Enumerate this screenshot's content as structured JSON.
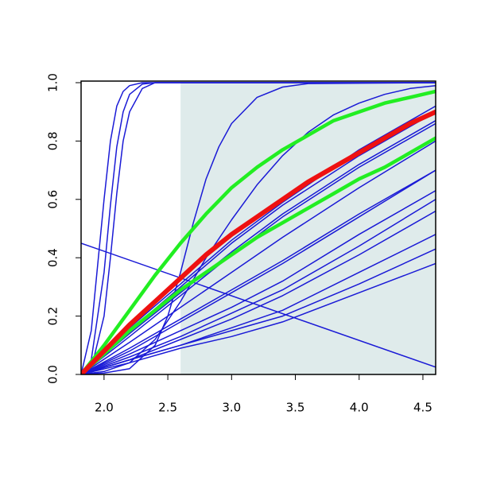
{
  "chart_data": {
    "type": "line",
    "xlim": [
      1.82,
      4.6
    ],
    "ylim": [
      0,
      1
    ],
    "xticks": [
      {
        "value": 2,
        "label": "2.0"
      },
      2.5,
      {
        "value": 3,
        "label": "3.0"
      },
      3.5,
      {
        "value": 4,
        "label": "4.0"
      },
      4.5
    ],
    "yticks": [
      {
        "value": 0,
        "label": "0.0"
      },
      0.2,
      0.4,
      0.6,
      0.8,
      {
        "value": 1,
        "label": "1.0"
      }
    ],
    "shaded_region": {
      "xlim": [
        2.6,
        4.6
      ],
      "ylim": [
        0,
        1
      ],
      "color": "#dfebeb"
    },
    "series": [
      {
        "color": "#1a1ad6",
        "linewidth": 1.5,
        "x": [
          1.82,
          1.9,
          2.0,
          2.05,
          2.1,
          2.15,
          2.2,
          2.3,
          2.4,
          4.6
        ],
        "values": [
          0,
          0.15,
          0.6,
          0.8,
          0.92,
          0.97,
          0.99,
          1,
          1,
          1
        ]
      },
      {
        "color": "#1a1ad6",
        "linewidth": 1.5,
        "x": [
          1.82,
          1.9,
          2.0,
          2.05,
          2.1,
          2.15,
          2.2,
          2.3,
          2.4,
          4.6
        ],
        "values": [
          0,
          0.05,
          0.35,
          0.58,
          0.78,
          0.9,
          0.96,
          0.995,
          1,
          1
        ]
      },
      {
        "color": "#1a1ad6",
        "linewidth": 1.5,
        "x": [
          1.82,
          1.9,
          2.0,
          2.05,
          2.1,
          2.15,
          2.2,
          2.3,
          2.4,
          4.6
        ],
        "values": [
          0,
          0.02,
          0.2,
          0.4,
          0.62,
          0.8,
          0.9,
          0.98,
          1,
          1
        ]
      },
      {
        "color": "#1a1ad6",
        "linewidth": 1.5,
        "x": [
          1.82,
          2.0,
          2.2,
          2.4,
          2.5,
          2.6,
          2.7,
          2.8,
          2.9,
          3.0,
          3.2,
          3.4,
          3.6,
          4.6
        ],
        "values": [
          0,
          0.005,
          0.02,
          0.1,
          0.2,
          0.35,
          0.52,
          0.67,
          0.78,
          0.86,
          0.95,
          0.985,
          0.997,
          1
        ]
      },
      {
        "color": "#1a1ad6",
        "linewidth": 1.5,
        "x": [
          1.82,
          2.0,
          2.2,
          2.4,
          2.6,
          2.8,
          3.0,
          3.2,
          3.4,
          3.6,
          3.8,
          4.0,
          4.2,
          4.4,
          4.6
        ],
        "values": [
          0,
          0.01,
          0.04,
          0.12,
          0.25,
          0.4,
          0.53,
          0.65,
          0.75,
          0.83,
          0.89,
          0.93,
          0.96,
          0.98,
          0.99
        ]
      },
      {
        "color": "#1a1ad6",
        "linewidth": 1.5,
        "x": [
          1.82,
          4.6
        ],
        "values": [
          0.45,
          0.025
        ]
      },
      {
        "color": "#1a1ad6",
        "linewidth": 1.5,
        "x": [
          1.82,
          2.2,
          2.6,
          3.0,
          3.4,
          4.0,
          4.6
        ],
        "values": [
          0,
          0.16,
          0.31,
          0.46,
          0.59,
          0.77,
          0.92
        ]
      },
      {
        "color": "#1a1ad6",
        "linewidth": 1.5,
        "x": [
          1.82,
          2.2,
          2.6,
          3.0,
          3.4,
          4.0,
          4.6
        ],
        "values": [
          0,
          0.15,
          0.3,
          0.45,
          0.58,
          0.75,
          0.9
        ]
      },
      {
        "color": "#1a1ad6",
        "linewidth": 1.5,
        "x": [
          1.82,
          2.2,
          2.6,
          3.0,
          3.4,
          4.0,
          4.6
        ],
        "values": [
          0,
          0.14,
          0.28,
          0.42,
          0.55,
          0.72,
          0.87
        ]
      },
      {
        "color": "#1a1ad6",
        "linewidth": 1.5,
        "x": [
          1.82,
          2.2,
          2.6,
          3.0,
          3.4,
          4.0,
          4.6
        ],
        "values": [
          0,
          0.13,
          0.27,
          0.41,
          0.54,
          0.71,
          0.86
        ]
      },
      {
        "color": "#1a1ad6",
        "linewidth": 1.5,
        "x": [
          1.82,
          2.2,
          2.6,
          3.0,
          3.4,
          4.0,
          4.6
        ],
        "values": [
          0,
          0.11,
          0.23,
          0.35,
          0.47,
          0.64,
          0.8
        ]
      },
      {
        "color": "#1a1ad6",
        "linewidth": 1.5,
        "x": [
          1.82,
          2.2,
          2.6,
          3.0,
          3.4,
          4.0,
          4.6
        ],
        "values": [
          0,
          0.09,
          0.19,
          0.29,
          0.39,
          0.55,
          0.7
        ]
      },
      {
        "color": "#1a1ad6",
        "linewidth": 1.5,
        "x": [
          1.82,
          2.2,
          2.6,
          3.0,
          3.4,
          4.0,
          4.6
        ],
        "values": [
          0,
          0.08,
          0.18,
          0.28,
          0.38,
          0.54,
          0.7
        ]
      },
      {
        "color": "#1a1ad6",
        "linewidth": 1.5,
        "x": [
          1.82,
          2.2,
          2.6,
          3.0,
          3.4,
          4.0,
          4.6
        ],
        "values": [
          0,
          0.07,
          0.15,
          0.23,
          0.32,
          0.48,
          0.63
        ]
      },
      {
        "color": "#1a1ad6",
        "linewidth": 1.5,
        "x": [
          1.82,
          2.2,
          2.6,
          3.0,
          3.4,
          4.0,
          4.6
        ],
        "values": [
          0,
          0.06,
          0.13,
          0.21,
          0.29,
          0.44,
          0.6
        ]
      },
      {
        "color": "#1a1ad6",
        "linewidth": 1.5,
        "x": [
          1.82,
          2.2,
          2.6,
          3.0,
          3.4,
          4.0,
          4.6
        ],
        "values": [
          0,
          0.05,
          0.12,
          0.19,
          0.27,
          0.41,
          0.56
        ]
      },
      {
        "color": "#1a1ad6",
        "linewidth": 1.5,
        "x": [
          1.82,
          2.2,
          2.6,
          3.0,
          3.4,
          4.0,
          4.6
        ],
        "values": [
          0,
          0.05,
          0.1,
          0.16,
          0.22,
          0.35,
          0.48
        ]
      },
      {
        "color": "#1a1ad6",
        "linewidth": 1.5,
        "x": [
          1.82,
          2.2,
          2.6,
          3.0,
          3.4,
          4.0,
          4.6
        ],
        "values": [
          0,
          0.05,
          0.1,
          0.15,
          0.2,
          0.31,
          0.43
        ]
      },
      {
        "color": "#1a1ad6",
        "linewidth": 1.5,
        "x": [
          1.82,
          2.2,
          2.6,
          3.0,
          3.4,
          4.0,
          4.6
        ],
        "values": [
          0,
          0.04,
          0.09,
          0.13,
          0.18,
          0.28,
          0.38
        ]
      },
      {
        "color": "#22ee22",
        "linewidth": 4.5,
        "x": [
          1.82,
          2.0,
          2.2,
          2.4,
          2.6,
          2.8,
          3.0,
          3.2,
          3.4,
          3.6,
          3.8,
          4.0,
          4.2,
          4.4,
          4.6
        ],
        "values": [
          0,
          0.1,
          0.22,
          0.34,
          0.45,
          0.55,
          0.64,
          0.71,
          0.77,
          0.82,
          0.87,
          0.9,
          0.93,
          0.95,
          0.97
        ]
      },
      {
        "color": "#22ee22",
        "linewidth": 4.5,
        "x": [
          1.82,
          2.0,
          2.2,
          2.4,
          2.6,
          2.8,
          3.0,
          3.2,
          3.4,
          3.6,
          3.8,
          4.0,
          4.2,
          4.4,
          4.6
        ],
        "values": [
          0,
          0.07,
          0.15,
          0.22,
          0.29,
          0.35,
          0.41,
          0.47,
          0.52,
          0.57,
          0.62,
          0.67,
          0.71,
          0.76,
          0.81
        ]
      },
      {
        "color": "#ee1111",
        "linewidth": 6,
        "x": [
          1.82,
          2.0,
          2.2,
          2.4,
          2.6,
          2.8,
          3.0,
          3.2,
          3.4,
          3.6,
          3.8,
          4.0,
          4.2,
          4.4,
          4.6
        ],
        "values": [
          0,
          0.08,
          0.17,
          0.25,
          0.33,
          0.41,
          0.48,
          0.54,
          0.6,
          0.66,
          0.71,
          0.76,
          0.81,
          0.86,
          0.9
        ]
      }
    ]
  }
}
